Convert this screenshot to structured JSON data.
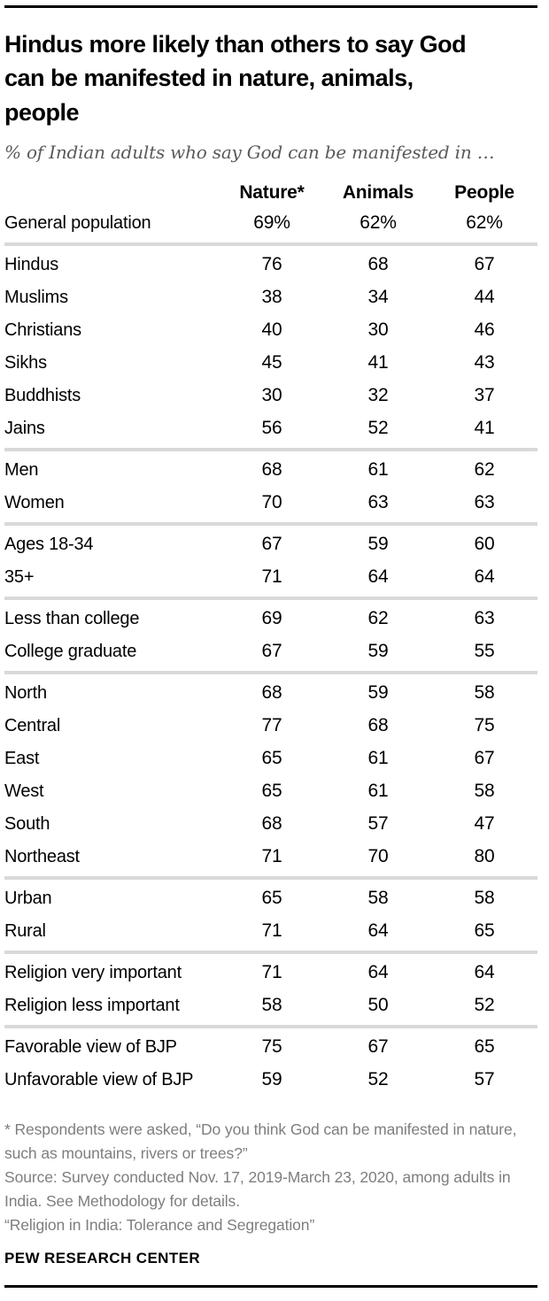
{
  "header": {
    "title": "Hindus more likely than others to say God can be manifested in nature, animals, people",
    "subtitle": "% of Indian adults who say God can be manifested in …"
  },
  "chart_data": {
    "type": "table",
    "columns": [
      "Nature*",
      "Animals",
      "People"
    ],
    "sections": [
      {
        "rows": [
          {
            "label": "General population",
            "values": [
              "69%",
              "62%",
              "62%"
            ]
          }
        ]
      },
      {
        "rows": [
          {
            "label": "Hindus",
            "values": [
              "76",
              "68",
              "67"
            ]
          },
          {
            "label": "Muslims",
            "values": [
              "38",
              "34",
              "44"
            ]
          },
          {
            "label": "Christians",
            "values": [
              "40",
              "30",
              "46"
            ]
          },
          {
            "label": "Sikhs",
            "values": [
              "45",
              "41",
              "43"
            ]
          },
          {
            "label": "Buddhists",
            "values": [
              "30",
              "32",
              "37"
            ]
          },
          {
            "label": "Jains",
            "values": [
              "56",
              "52",
              "41"
            ]
          }
        ]
      },
      {
        "rows": [
          {
            "label": "Men",
            "values": [
              "68",
              "61",
              "62"
            ]
          },
          {
            "label": "Women",
            "values": [
              "70",
              "63",
              "63"
            ]
          }
        ]
      },
      {
        "rows": [
          {
            "label": "Ages 18-34",
            "values": [
              "67",
              "59",
              "60"
            ]
          },
          {
            "label": "35+",
            "values": [
              "71",
              "64",
              "64"
            ]
          }
        ]
      },
      {
        "rows": [
          {
            "label": "Less than college",
            "values": [
              "69",
              "62",
              "63"
            ]
          },
          {
            "label": "College graduate",
            "values": [
              "67",
              "59",
              "55"
            ]
          }
        ]
      },
      {
        "rows": [
          {
            "label": "North",
            "values": [
              "68",
              "59",
              "58"
            ]
          },
          {
            "label": "Central",
            "values": [
              "77",
              "68",
              "75"
            ]
          },
          {
            "label": "East",
            "values": [
              "65",
              "61",
              "67"
            ]
          },
          {
            "label": "West",
            "values": [
              "65",
              "61",
              "58"
            ]
          },
          {
            "label": "South",
            "values": [
              "68",
              "57",
              "47"
            ]
          },
          {
            "label": "Northeast",
            "values": [
              "71",
              "70",
              "80"
            ]
          }
        ]
      },
      {
        "rows": [
          {
            "label": "Urban",
            "values": [
              "65",
              "58",
              "58"
            ]
          },
          {
            "label": "Rural",
            "values": [
              "71",
              "64",
              "65"
            ]
          }
        ]
      },
      {
        "rows": [
          {
            "label": "Religion very important",
            "values": [
              "71",
              "64",
              "64"
            ]
          },
          {
            "label": "Religion less important",
            "values": [
              "58",
              "50",
              "52"
            ]
          }
        ]
      },
      {
        "rows": [
          {
            "label": "Favorable view of BJP",
            "values": [
              "75",
              "67",
              "65"
            ]
          },
          {
            "label": "Unfavorable view of BJP",
            "values": [
              "59",
              "52",
              "57"
            ]
          }
        ]
      }
    ]
  },
  "footer": {
    "notes": [
      "* Respondents were asked, “Do you think God can be manifested in nature, such as mountains, rivers or trees?”",
      "Source: Survey conducted Nov. 17, 2019-March 23, 2020, among adults in India. See Methodology for details.",
      "“Religion in India: Tolerance and Segregation”"
    ],
    "brand": "PEW RESEARCH CENTER"
  },
  "colors": {
    "rule": "#000000",
    "divider": "#d9d9d9",
    "subtitle_gray": "#5a5a5a",
    "note_gray": "#7e7e7e"
  }
}
